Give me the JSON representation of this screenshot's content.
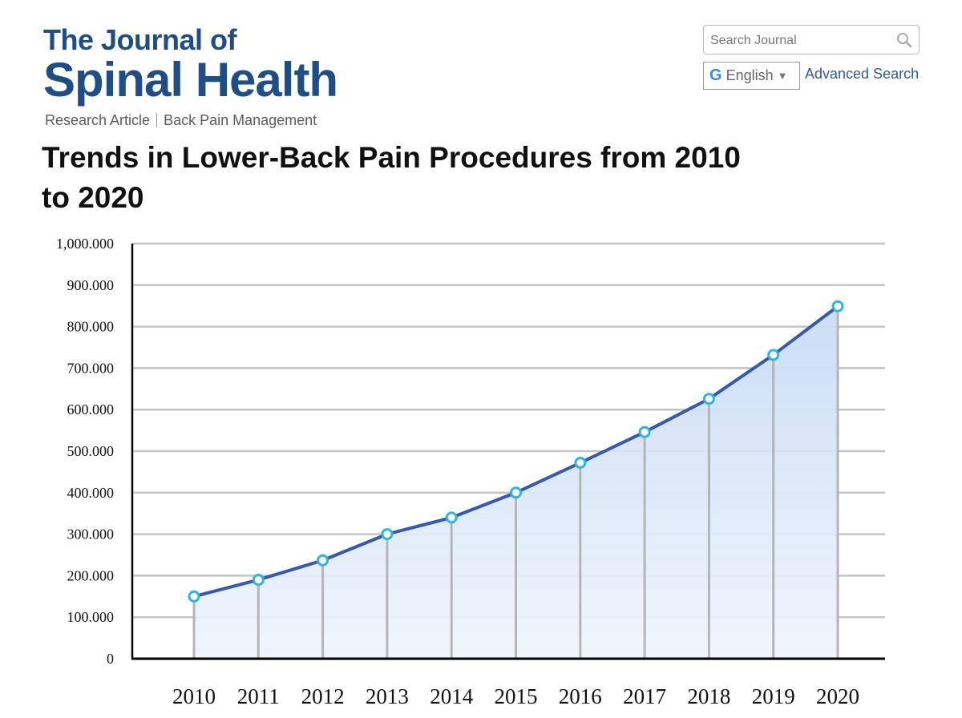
{
  "journal": {
    "line1": "The Journal of",
    "line2": "Spinal Health"
  },
  "breadcrumb": {
    "type": "Research Article",
    "section": "Back Pain Management"
  },
  "article": {
    "title": "Trends in Lower-Back Pain Procedures from 2010 to 2020"
  },
  "search": {
    "placeholder": "Search Journal",
    "icon": "search-icon"
  },
  "language": {
    "logo": "G",
    "label": "English",
    "caret": "▼"
  },
  "advanced_search": "Advanced Search",
  "colors": {
    "brand": "#1f4e86",
    "line": "#3658ad",
    "marker": "#2fb4df",
    "area": "#cfe0f6",
    "grid": "#c4c4c4"
  },
  "chart_data": {
    "type": "area",
    "title": "Trends in Lower-Back Pain Procedures from 2010 to 2020",
    "xlabel": "",
    "ylabel": "",
    "x": [
      2010,
      2011,
      2012,
      2013,
      2014,
      2015,
      2016,
      2017,
      2018,
      2019,
      2020
    ],
    "series": [
      {
        "values": [
          150000,
          190000,
          237000,
          300000,
          340000,
          400000,
          472000,
          546000,
          626000,
          732000,
          849000
        ]
      }
    ],
    "ylim": [
      0,
      1000000
    ],
    "yticks": [
      0,
      100000,
      200000,
      300000,
      400000,
      500000,
      600000,
      700000,
      800000,
      900000,
      1000000
    ],
    "ytick_labels": [
      "0",
      "100.000",
      "200.000",
      "300.000",
      "400.000",
      "500.000",
      "600.000",
      "700.000",
      "800.000",
      "900.000",
      "1,000.000"
    ],
    "grid": true,
    "legend": "none",
    "markers": true
  }
}
